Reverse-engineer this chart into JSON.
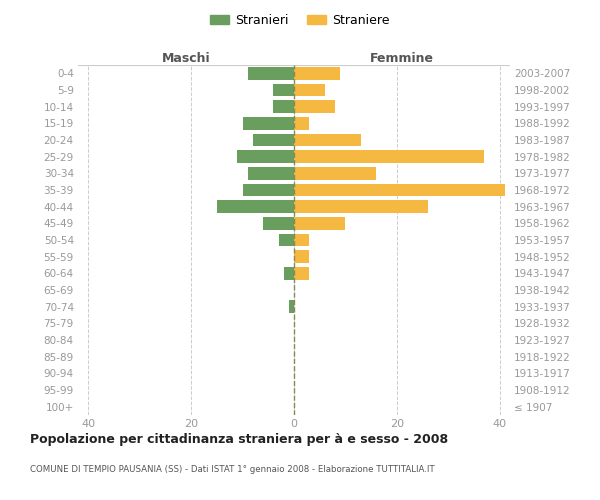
{
  "age_groups": [
    "100+",
    "95-99",
    "90-94",
    "85-89",
    "80-84",
    "75-79",
    "70-74",
    "65-69",
    "60-64",
    "55-59",
    "50-54",
    "45-49",
    "40-44",
    "35-39",
    "30-34",
    "25-29",
    "20-24",
    "15-19",
    "10-14",
    "5-9",
    "0-4"
  ],
  "birth_years": [
    "≤ 1907",
    "1908-1912",
    "1913-1917",
    "1918-1922",
    "1923-1927",
    "1928-1932",
    "1933-1937",
    "1938-1942",
    "1943-1947",
    "1948-1952",
    "1953-1957",
    "1958-1962",
    "1963-1967",
    "1968-1972",
    "1973-1977",
    "1978-1982",
    "1983-1987",
    "1988-1992",
    "1993-1997",
    "1998-2002",
    "2003-2007"
  ],
  "males": [
    0,
    0,
    0,
    0,
    0,
    0,
    1,
    0,
    2,
    0,
    3,
    6,
    15,
    10,
    9,
    11,
    8,
    10,
    4,
    4,
    9
  ],
  "females": [
    0,
    0,
    0,
    0,
    0,
    0,
    0,
    0,
    3,
    3,
    3,
    10,
    26,
    41,
    16,
    37,
    13,
    3,
    8,
    6,
    9
  ],
  "male_color": "#6a9e5e",
  "female_color": "#f5b942",
  "male_label": "Stranieri",
  "female_label": "Straniere",
  "title": "Popolazione per cittadinanza straniera per à e sesso - 2008",
  "subtitle": "COMUNE DI TEMPIO PAUSANIA (SS) - Dati ISTAT 1° gennaio 2008 - Elaborazione TUTTITALIA.IT",
  "xlabel_left": "Maschi",
  "xlabel_right": "Femmine",
  "xlim": 42,
  "bg_color": "#ffffff",
  "grid_color": "#cccccc",
  "axis_label_color": "#555555",
  "tick_color": "#999999"
}
